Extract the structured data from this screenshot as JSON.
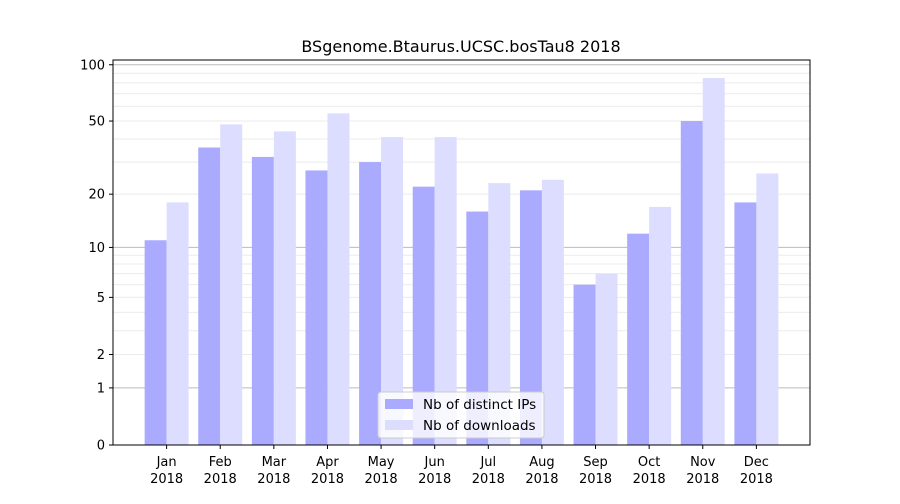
{
  "chart_data": {
    "type": "bar",
    "title": "BSgenome.Btaurus.UCSC.bosTau8 2018",
    "xlabel": "",
    "ylabel": "",
    "y_scale": "log10(1+y)",
    "ylim": [
      0,
      106
    ],
    "yticks": [
      0,
      1,
      2,
      5,
      10,
      20,
      50,
      100
    ],
    "grid": true,
    "legend_position": "bottom-center",
    "categories": [
      [
        "Jan",
        "2018"
      ],
      [
        "Feb",
        "2018"
      ],
      [
        "Mar",
        "2018"
      ],
      [
        "Apr",
        "2018"
      ],
      [
        "May",
        "2018"
      ],
      [
        "Jun",
        "2018"
      ],
      [
        "Jul",
        "2018"
      ],
      [
        "Aug",
        "2018"
      ],
      [
        "Sep",
        "2018"
      ],
      [
        "Oct",
        "2018"
      ],
      [
        "Nov",
        "2018"
      ],
      [
        "Dec",
        "2018"
      ]
    ],
    "series": [
      {
        "name": "Nb of distinct IPs",
        "color": "#aaaaff",
        "values": [
          11,
          36,
          32,
          27,
          30,
          22,
          16,
          21,
          6,
          12,
          50,
          18
        ]
      },
      {
        "name": "Nb of downloads",
        "color": "#ddddff",
        "values": [
          18,
          48,
          44,
          55,
          41,
          41,
          23,
          24,
          7,
          17,
          85,
          26
        ]
      }
    ]
  }
}
